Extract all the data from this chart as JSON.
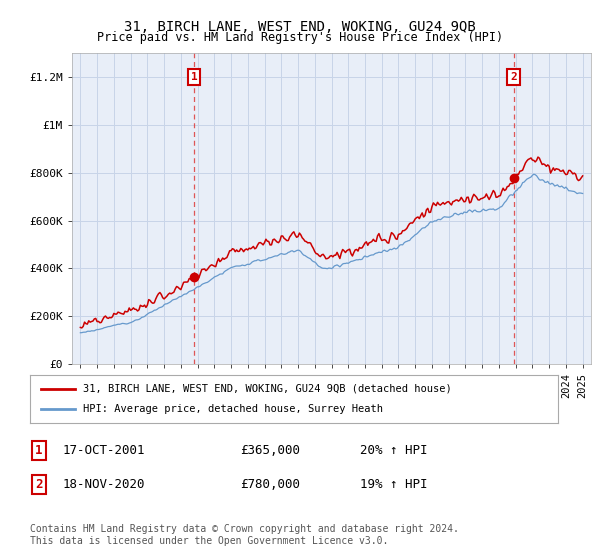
{
  "title": "31, BIRCH LANE, WEST END, WOKING, GU24 9QB",
  "subtitle": "Price paid vs. HM Land Registry's House Price Index (HPI)",
  "ylabel_ticks": [
    "£0",
    "£200K",
    "£400K",
    "£600K",
    "£800K",
    "£1M",
    "£1.2M"
  ],
  "ytick_vals": [
    0,
    200000,
    400000,
    600000,
    800000,
    1000000,
    1200000
  ],
  "ylim": [
    0,
    1300000
  ],
  "xlim_start": 1994.5,
  "xlim_end": 2025.5,
  "red_line_color": "#cc0000",
  "blue_line_color": "#6699cc",
  "vline_color": "#dd4444",
  "plot_bg_color": "#e8eef8",
  "marker1_x": 2001.8,
  "marker1_y": 365000,
  "marker2_x": 2020.88,
  "marker2_y": 780000,
  "legend_label_red": "31, BIRCH LANE, WEST END, WOKING, GU24 9QB (detached house)",
  "legend_label_blue": "HPI: Average price, detached house, Surrey Heath",
  "table_rows": [
    {
      "num": "1",
      "date": "17-OCT-2001",
      "price": "£365,000",
      "hpi": "20% ↑ HPI"
    },
    {
      "num": "2",
      "date": "18-NOV-2020",
      "price": "£780,000",
      "hpi": "19% ↑ HPI"
    }
  ],
  "footnote": "Contains HM Land Registry data © Crown copyright and database right 2024.\nThis data is licensed under the Open Government Licence v3.0.",
  "background_color": "#ffffff",
  "grid_color": "#c8d4e8"
}
